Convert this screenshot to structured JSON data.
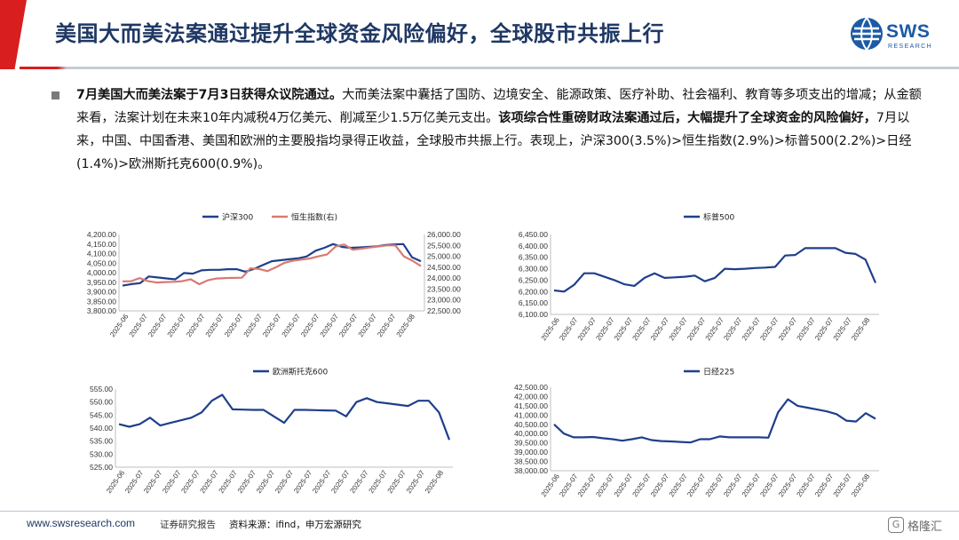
{
  "header": {
    "title": "美国大而美法案通过提升全球资金风险偏好，全球股市共振上行",
    "logo_text": "SWS",
    "logo_sub": "RESEARCH",
    "accent": "#d81e1e",
    "title_color": "#1f3864"
  },
  "body": {
    "p1": "7月美国大而美法案于7月3日获得众议院通过。",
    "p2": "大而美法案中囊括了国防、边境安全、能源政策、医疗补助、社会福利、教育等多项支出的增减；从金额来看，法案计划在未来10年内减税4万亿美元、削减至少1.5万亿美元支出。",
    "p3": "该项综合性重磅财政法案通过后，大幅提升了全球资金的风险偏好，",
    "p4": "7月以来，中国、中国香港、美国和欧洲的主要股指均录得正收益，全球股市共振上行。表现上，沪深300(3.5%)>恒生指数(2.9%)>标普500(2.2%)>日经(1.4%)>欧洲斯托克600(0.9%)。"
  },
  "footer": {
    "url": "www.swsresearch.com",
    "dept": "证券研究报告",
    "source": "资料来源：ifind，申万宏源研究",
    "watermark": "格隆汇",
    "watermark_icon": "G"
  },
  "chart_data": [
    {
      "type": "line",
      "dual_axis": true,
      "x_tick_labels": [
        "2025-06",
        "2025-07",
        "2025-07",
        "2025-07",
        "2025-07",
        "2025-07",
        "2025-07",
        "2025-07",
        "2025-07",
        "2025-07",
        "2025-07",
        "2025-07",
        "2025-07",
        "2025-07",
        "2025-07",
        "2025-08"
      ],
      "series": [
        {
          "name": "沪深300",
          "color": "#1f3f8c",
          "axis": "left",
          "values": [
            3932,
            3940,
            3945,
            3980,
            3975,
            3970,
            3965,
            3998,
            3995,
            4012,
            4015,
            4015,
            4018,
            4018,
            4005,
            4020,
            4040,
            4060,
            4065,
            4070,
            4075,
            4085,
            4115,
            4130,
            4150,
            4135,
            4130,
            4132,
            4135,
            4138,
            4145,
            4148,
            4150,
            4080,
            4060
          ]
        },
        {
          "name": "恒生指数(右)",
          "color": "#d87a72",
          "axis": "right",
          "values": [
            23850,
            23860,
            24000,
            23860,
            23800,
            23820,
            23830,
            23860,
            23950,
            23720,
            23900,
            23980,
            24000,
            24010,
            24020,
            24450,
            24420,
            24320,
            24500,
            24700,
            24800,
            24850,
            24900,
            25000,
            25090,
            25450,
            25540,
            25300,
            25350,
            25400,
            25450,
            25500,
            25500,
            25000,
            24800,
            24550
          ]
        }
      ],
      "ylim_left": [
        3800,
        4200
      ],
      "ylim_right": [
        22500,
        26000
      ],
      "left_ticks": [
        "4,200.00",
        "4,150.00",
        "4,100.00",
        "4,050.00",
        "4,000.00",
        "3,950.00",
        "3,900.00",
        "3,850.00",
        "3,800.00"
      ],
      "right_ticks": [
        "26,000.00",
        "25,500.00",
        "25,000.00",
        "24,500.00",
        "24,000.00",
        "23,500.00",
        "23,000.00",
        "22,500.00"
      ],
      "legend_position": "top-center"
    },
    {
      "type": "line",
      "x_tick_labels": [
        "2025-06",
        "2025-07",
        "2025-07",
        "2025-07",
        "2025-07",
        "2025-07",
        "2025-07",
        "2025-07",
        "2025-07",
        "2025-07",
        "2025-07",
        "2025-07",
        "2025-07",
        "2025-07",
        "2025-07",
        "2025-07",
        "2025-07",
        "2025-08"
      ],
      "series": [
        {
          "name": "标普500",
          "color": "#1f3f8c",
          "values": [
            6205,
            6200,
            6230,
            6280,
            6280,
            6265,
            6250,
            6232,
            6225,
            6260,
            6280,
            6260,
            6262,
            6265,
            6270,
            6245,
            6260,
            6300,
            6298,
            6300,
            6303,
            6305,
            6308,
            6358,
            6360,
            6390,
            6390,
            6390,
            6390,
            6370,
            6365,
            6340,
            6238
          ]
        }
      ],
      "ylim": [
        6100,
        6450
      ],
      "y_ticks": [
        "6,450.00",
        "6,400.00",
        "6,350.00",
        "6,300.00",
        "6,250.00",
        "6,200.00",
        "6,150.00",
        "6,100.00"
      ],
      "legend_position": "top-center"
    },
    {
      "type": "line",
      "x_tick_labels": [
        "2025-06",
        "2025-07",
        "2025-07",
        "2025-07",
        "2025-07",
        "2025-07",
        "2025-07",
        "2025-07",
        "2025-07",
        "2025-07",
        "2025-07",
        "2025-07",
        "2025-07",
        "2025-07",
        "2025-07",
        "2025-07",
        "2025-07",
        "2025-08"
      ],
      "series": [
        {
          "name": "欧洲斯托克600",
          "color": "#1f3f8c",
          "values": [
            541.5,
            540.5,
            541.5,
            544,
            541,
            542,
            543,
            544,
            546,
            550.5,
            552.8,
            547.2,
            547.1,
            547,
            547,
            544.5,
            542,
            547,
            547,
            546.9,
            546.8,
            546.7,
            544.5,
            550,
            551.5,
            550,
            549.5,
            549,
            548.5,
            550.5,
            550.5,
            546,
            535.5
          ]
        }
      ],
      "ylim": [
        525,
        555
      ],
      "y_ticks": [
        "555.00",
        "550.00",
        "545.00",
        "540.00",
        "535.00",
        "530.00",
        "525.00"
      ],
      "legend_position": "top-center"
    },
    {
      "type": "line",
      "x_tick_labels": [
        "2025-06",
        "2025-07",
        "2025-07",
        "2025-07",
        "2025-07",
        "2025-07",
        "2025-07",
        "2025-07",
        "2025-07",
        "2025-07",
        "2025-07",
        "2025-07",
        "2025-07",
        "2025-07",
        "2025-07",
        "2025-07",
        "2025-07",
        "2025-08"
      ],
      "series": [
        {
          "name": "日经225",
          "color": "#1f3f8c",
          "values": [
            40500,
            40000,
            39800,
            39800,
            39820,
            39750,
            39700,
            39620,
            39700,
            39800,
            39650,
            39600,
            39580,
            39550,
            39520,
            39700,
            39700,
            39850,
            39800,
            39800,
            39800,
            39800,
            39780,
            41150,
            41850,
            41500,
            41400,
            41300,
            41200,
            41050,
            40700,
            40650,
            41100,
            40800
          ]
        }
      ],
      "ylim": [
        38000,
        42500
      ],
      "y_ticks": [
        "42,500.00",
        "42,000.00",
        "41,500.00",
        "41,000.00",
        "40,500.00",
        "40,000.00",
        "39,500.00",
        "39,000.00",
        "38,500.00",
        "38,000.00"
      ],
      "legend_position": "top-center"
    }
  ]
}
